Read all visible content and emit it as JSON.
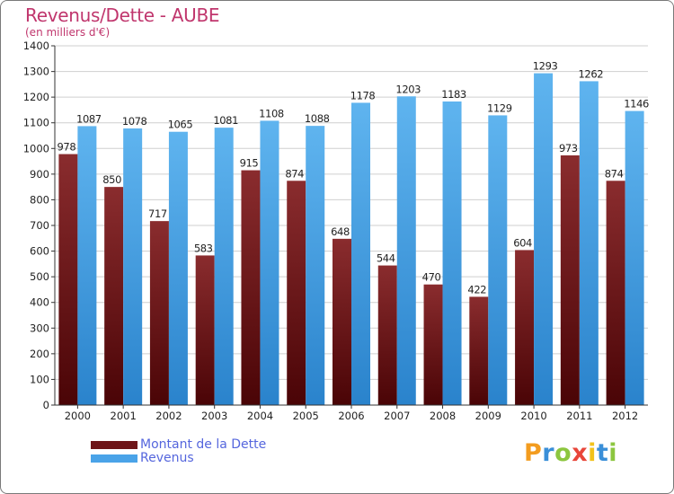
{
  "header": {
    "title": "Revenus/Dette - AUBE",
    "subtitle": "(en milliers d'€)"
  },
  "chart_data": {
    "type": "bar",
    "categories": [
      "2000",
      "2001",
      "2002",
      "2003",
      "2004",
      "2005",
      "2006",
      "2007",
      "2008",
      "2009",
      "2010",
      "2011",
      "2012"
    ],
    "series": [
      {
        "name": "Montant de la Dette",
        "values": [
          978,
          850,
          717,
          583,
          915,
          874,
          648,
          544,
          470,
          422,
          604,
          973,
          874
        ],
        "color": "#6e1518"
      },
      {
        "name": "Revenus",
        "values": [
          1087,
          1078,
          1065,
          1081,
          1108,
          1088,
          1178,
          1203,
          1183,
          1129,
          1293,
          1262,
          1146
        ],
        "color": "#4aa3e8"
      }
    ],
    "ylim": [
      0,
      1400
    ],
    "yticks": [
      0,
      100,
      200,
      300,
      400,
      500,
      600,
      700,
      800,
      900,
      1000,
      1100,
      1200,
      1300,
      1400
    ],
    "grid": true,
    "legend_position": "bottom-left"
  },
  "legend": {
    "items": [
      {
        "label": "Montant de la Dette",
        "color": "#6e1518"
      },
      {
        "label": "Revenus",
        "color": "#4aa3e8"
      }
    ]
  },
  "brand": {
    "letters": [
      "P",
      "r",
      "o",
      "x",
      "i",
      "t",
      "i"
    ],
    "colors": [
      "#f39c1f",
      "#3a8fd8",
      "#8cc63f",
      "#e8463a",
      "#f2c21b",
      "#3a8fd8",
      "#8cc63f"
    ]
  }
}
